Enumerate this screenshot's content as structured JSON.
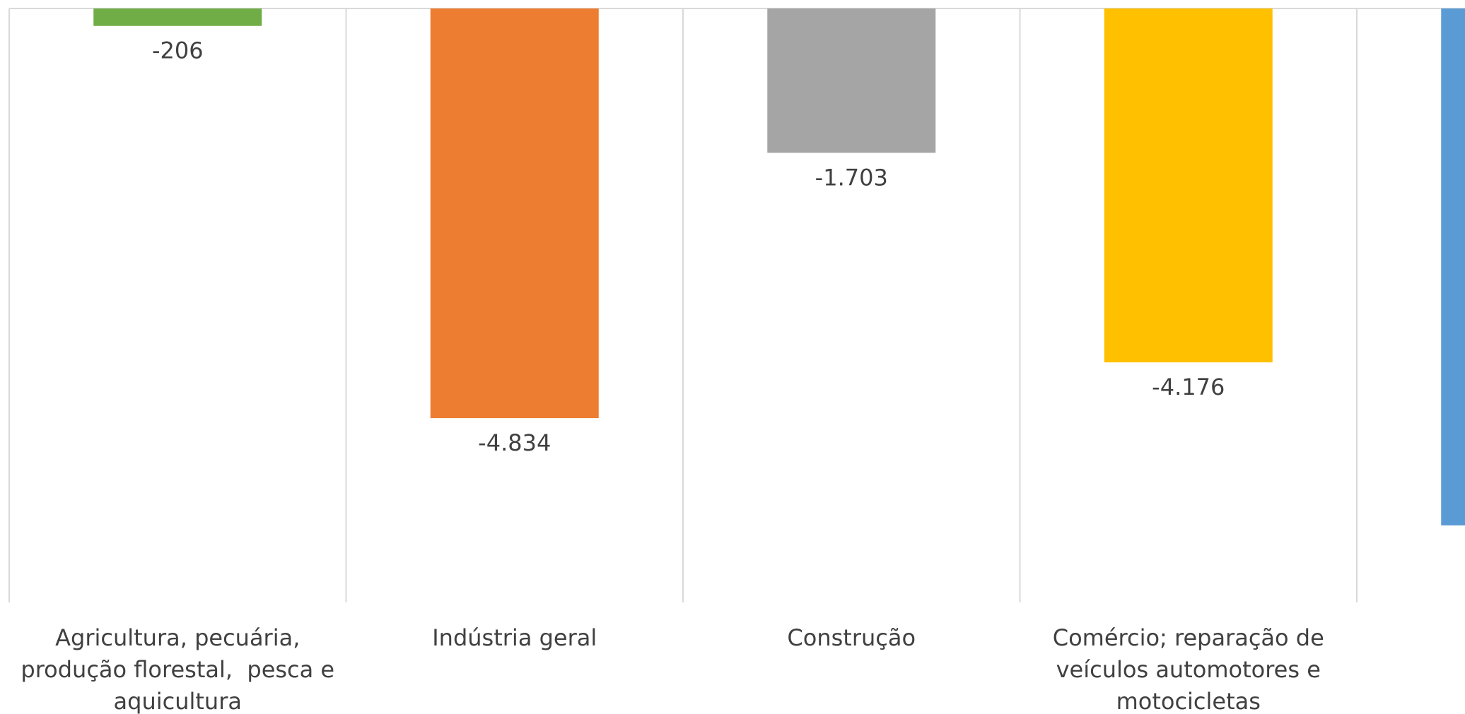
{
  "chart_data": {
    "type": "bar",
    "categories": [
      [
        "Agricultura, pecuária,",
        "produção florestal,  pesca e",
        "aquicultura"
      ],
      [
        "Indústria geral"
      ],
      [
        "Construção"
      ],
      [
        "Comércio; reparação de",
        "veículos automotores e",
        "motocicletas"
      ],
      [
        ""
      ]
    ],
    "values": [
      -206,
      -4834,
      -1703,
      -4176,
      -6100
    ],
    "data_labels": [
      "-206",
      "-4.834",
      "-1.703",
      "-4.176",
      ""
    ],
    "colors": [
      "#70AD47",
      "#ED7D31",
      "#A5A5A5",
      "#FFC000",
      "#5B9BD5"
    ],
    "ylim": [
      -7000,
      0
    ],
    "title": "",
    "xlabel": "",
    "ylabel": "",
    "grid": "vertical category separators",
    "legend": "none"
  }
}
